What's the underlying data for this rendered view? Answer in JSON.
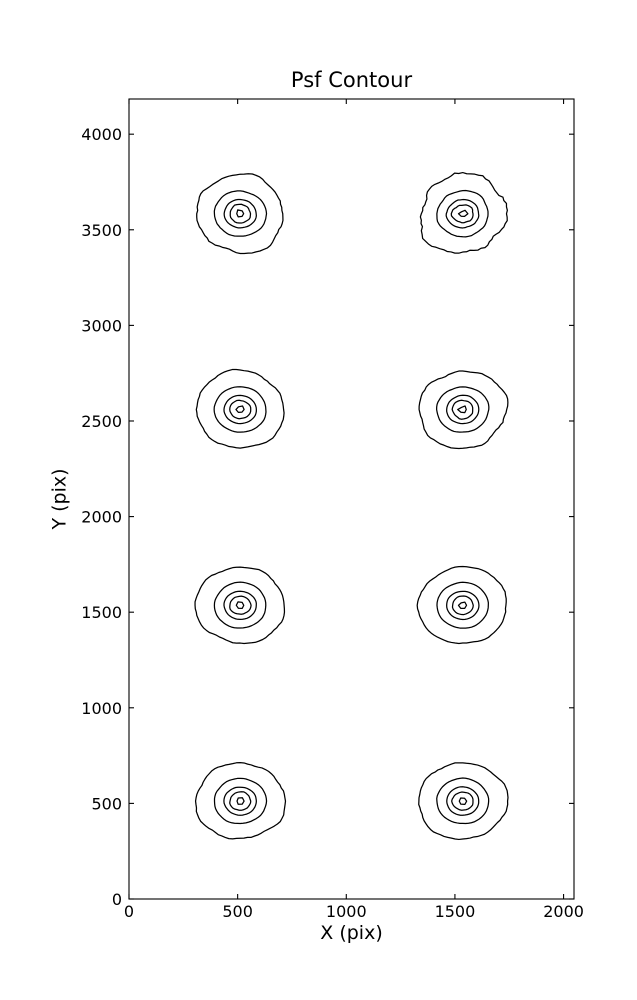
{
  "figure": {
    "background": "#ffffff",
    "line_color": "#000000"
  },
  "chart_data": {
    "type": "contour",
    "title": "Psf Contour",
    "xlabel": "X (pix)",
    "ylabel": "Y (pix)",
    "xlim": [
      0,
      2048
    ],
    "ylim": [
      0,
      4184
    ],
    "xticks": [
      0,
      500,
      1000,
      1500,
      2000
    ],
    "yticks": [
      0,
      500,
      1000,
      1500,
      2000,
      2500,
      3000,
      3500,
      4000
    ],
    "grid": false,
    "legend": "none",
    "line_color": "#000000",
    "background": "#ffffff",
    "description": "Eight point-spread-function contour blobs arranged in a 2 x 4 grid; each blob has 5 nested contour levels, irregular outer ring and tiny diamond-shaped innermost ring.",
    "sources": [
      {
        "name": "psf-row1-left",
        "x": 512,
        "y": 3584,
        "roughness": 1.5
      },
      {
        "name": "psf-row1-right",
        "x": 1536,
        "y": 3584,
        "roughness": 2.4
      },
      {
        "name": "psf-row2-left",
        "x": 512,
        "y": 2560,
        "roughness": 1.0
      },
      {
        "name": "psf-row2-right",
        "x": 1536,
        "y": 2560,
        "roughness": 1.4
      },
      {
        "name": "psf-row3-left",
        "x": 512,
        "y": 1536,
        "roughness": 1.0
      },
      {
        "name": "psf-row3-right",
        "x": 1536,
        "y": 1536,
        "roughness": 0.8
      },
      {
        "name": "psf-row4-left",
        "x": 512,
        "y": 512,
        "roughness": 1.2
      },
      {
        "name": "psf-row4-right",
        "x": 1536,
        "y": 512,
        "roughness": 1.0
      }
    ],
    "contour_levels": [
      {
        "radius": 202,
        "points": 72,
        "wobble": 0.035
      },
      {
        "radius": 119,
        "points": 56,
        "wobble": 0.015
      },
      {
        "radius": 74,
        "points": 44,
        "wobble": 0.013
      },
      {
        "radius": 48,
        "points": 30,
        "wobble": 0.035
      },
      {
        "radius": 18,
        "points": 6,
        "wobble": 0.16
      }
    ]
  }
}
